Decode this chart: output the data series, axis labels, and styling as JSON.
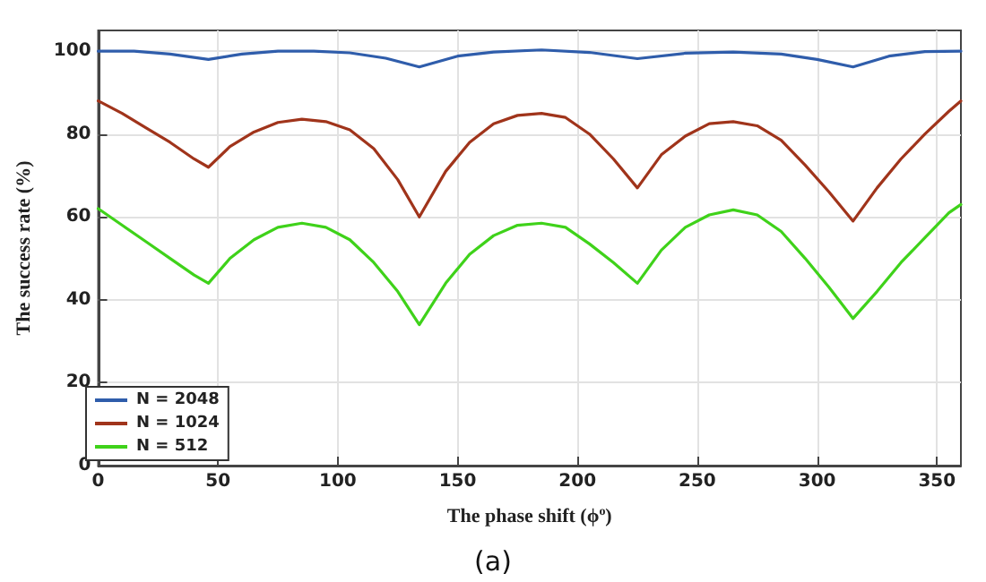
{
  "chart_data": {
    "type": "line",
    "xlabel": "The phase shift (ϕ$^{o}$)",
    "ylabel": "The success rate (%)",
    "annotations": [
      "(a)"
    ],
    "xlim": [
      0,
      360
    ],
    "xticks": [
      0,
      50,
      100,
      150,
      200,
      250,
      300,
      350
    ],
    "ylim": [
      0,
      105
    ],
    "yticks": [
      0,
      20,
      40,
      60,
      80,
      100
    ],
    "grid": true,
    "legend": "bottom left",
    "marker": "none",
    "line_style": "solid",
    "series": [
      {
        "name": "N = 2048",
        "color": "#2f5dab",
        "x": [
          0,
          15,
          30,
          46,
          60,
          75,
          90,
          105,
          120,
          134,
          150,
          165,
          185,
          205,
          225,
          245,
          265,
          285,
          300,
          315,
          330,
          345,
          360
        ],
        "values": [
          100,
          100,
          99.3,
          98,
          99.3,
          100,
          100,
          99.6,
          98.3,
          96.2,
          98.8,
          99.8,
          100.3,
          99.7,
          98.2,
          99.5,
          99.8,
          99.3,
          98,
          96.2,
          98.8,
          99.9,
          100
        ]
      },
      {
        "name": "N = 1024",
        "color": "#a0341b",
        "x": [
          0,
          10,
          20,
          30,
          40,
          46,
          55,
          65,
          75,
          85,
          95,
          105,
          115,
          125,
          134,
          145,
          155,
          165,
          175,
          185,
          195,
          205,
          215,
          225,
          235,
          245,
          255,
          265,
          275,
          285,
          295,
          305,
          315,
          325,
          335,
          345,
          355,
          360
        ],
        "values": [
          88,
          85,
          81.5,
          78,
          74,
          72,
          77,
          80.5,
          82.8,
          83.6,
          83,
          81,
          76.5,
          69,
          60,
          71,
          78,
          82.5,
          84.5,
          85,
          84,
          80,
          74,
          67,
          75,
          79.5,
          82.5,
          83,
          82,
          78.5,
          72.5,
          66,
          59,
          67,
          74,
          80,
          85.5,
          88
        ]
      },
      {
        "name": "N = 512",
        "color": "#3fd21a",
        "x": [
          0,
          10,
          20,
          30,
          40,
          46,
          55,
          65,
          75,
          85,
          95,
          105,
          115,
          125,
          134,
          145,
          155,
          165,
          175,
          185,
          195,
          205,
          215,
          225,
          235,
          245,
          255,
          265,
          275,
          285,
          295,
          305,
          315,
          325,
          335,
          345,
          355,
          360
        ],
        "values": [
          62,
          58,
          54,
          50,
          46,
          44,
          50,
          54.5,
          57.5,
          58.5,
          57.5,
          54.5,
          49,
          42,
          34,
          44,
          51,
          55.5,
          58,
          58.5,
          57.5,
          53.5,
          49,
          44,
          52,
          57.5,
          60.5,
          61.7,
          60.5,
          56.5,
          50,
          43,
          35.5,
          42,
          49,
          55,
          61,
          63
        ]
      }
    ]
  }
}
